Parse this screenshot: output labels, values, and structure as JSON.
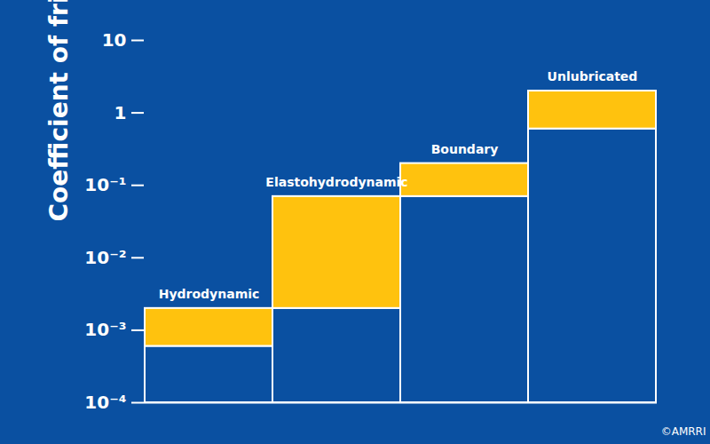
{
  "chart_data": {
    "type": "bar",
    "y_label": "Coefficient of friction, μ",
    "categories": [
      "Hydrodynamic",
      "Elastohydrodynamic",
      "Boundary",
      "Unlubricated"
    ],
    "values": [
      [
        0.0006,
        0.002
      ],
      [
        0.002,
        0.07
      ],
      [
        0.07,
        0.2
      ],
      [
        0.6,
        2
      ]
    ],
    "color": "#ffc20e",
    "ylim": [
      0.0001,
      10
    ],
    "yticks": [
      {
        "value": 0.0001,
        "label": "10⁻⁴"
      },
      {
        "value": 0.001,
        "label": "10⁻³"
      },
      {
        "value": 0.01,
        "label": "10⁻²"
      },
      {
        "value": 0.1,
        "label": "10⁻¹"
      },
      1,
      10
    ],
    "log": "y",
    "tick_labels": "y",
    "annotations": [
      "©AMRRI"
    ]
  }
}
